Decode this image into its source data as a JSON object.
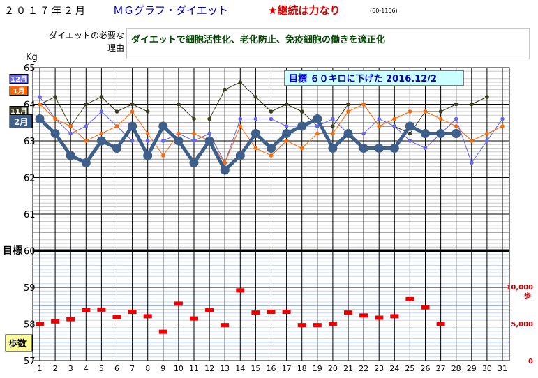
{
  "header": {
    "year_month": "２０１７年２月",
    "link": "ＭＧグラフ・ダイエット",
    "motto": "★継続は力なり",
    "code": "(60-1106)"
  },
  "reason": {
    "label": "ダイエットの必要な理由",
    "text": "ダイエットで細胞活性化、老化防止、免疫細胞の働きを適正化"
  },
  "chart_data": {
    "type": "line",
    "ylabel": "Kg",
    "target_label": "目標",
    "target_value": 60,
    "goal_note": "目標 ６０キロに下げた 2016.12/2",
    "steps_label": "歩数",
    "x": [
      1,
      2,
      3,
      4,
      5,
      6,
      7,
      8,
      9,
      10,
      11,
      12,
      13,
      14,
      15,
      16,
      17,
      18,
      19,
      20,
      21,
      22,
      23,
      24,
      25,
      26,
      27,
      28,
      29,
      30,
      31
    ],
    "ylim": [
      57,
      65
    ],
    "y_ticks": [
      57,
      58,
      59,
      60,
      61,
      62,
      63,
      64,
      65
    ],
    "steps_ticks": [
      {
        "value": 0,
        "label": "0"
      },
      {
        "value": 5000,
        "label": "5,000"
      },
      {
        "value": 10000,
        "label": "10,000"
      }
    ],
    "steps_unit": "歩",
    "series": [
      {
        "name": "11月",
        "color": "#3a3a1c",
        "values": [
          64.0,
          64.2,
          63.4,
          64.0,
          64.2,
          63.8,
          64.0,
          63.8,
          null,
          64.0,
          63.6,
          63.6,
          64.4,
          64.6,
          64.2,
          63.8,
          64.0,
          63.8,
          63.4,
          63.4,
          64.0,
          64.0,
          63.4,
          63.4,
          63.2,
          63.8,
          63.8,
          64.0,
          64.0,
          64.2,
          null
        ]
      },
      {
        "name": "12月",
        "color": "#6666ee",
        "values": [
          64.2,
          63.6,
          63.2,
          63.4,
          63.8,
          63.4,
          63.0,
          63.0,
          63.0,
          63.2,
          63.0,
          63.2,
          62.4,
          63.6,
          63.6,
          63.6,
          63.4,
          63.4,
          63.4,
          63.6,
          63.2,
          63.2,
          63.6,
          63.4,
          63.0,
          62.8,
          63.2,
          63.6,
          62.4,
          63.0,
          63.6
        ]
      },
      {
        "name": "1月",
        "color": "#ff6600",
        "values": [
          64.0,
          63.6,
          63.4,
          63.0,
          63.2,
          63.4,
          63.8,
          63.2,
          62.6,
          63.2,
          63.2,
          63.0,
          62.4,
          63.4,
          62.8,
          62.6,
          63.0,
          62.8,
          63.2,
          63.2,
          63.8,
          64.0,
          63.4,
          63.6,
          63.8,
          63.8,
          63.6,
          63.4,
          63.0,
          63.2,
          63.4
        ]
      },
      {
        "name": "2月",
        "color": "#3d5f8a",
        "values": [
          63.6,
          63.2,
          62.6,
          62.4,
          63.0,
          62.8,
          63.4,
          62.6,
          63.4,
          63.0,
          62.4,
          63.0,
          62.2,
          62.6,
          63.2,
          62.8,
          63.2,
          63.4,
          63.6,
          62.8,
          63.2,
          62.8,
          62.8,
          62.8,
          63.4,
          63.2,
          63.2,
          63.2,
          null,
          null,
          null
        ]
      }
    ],
    "steps": [
      5000,
      5300,
      5600,
      6800,
      6900,
      5900,
      6600,
      6000,
      3900,
      7700,
      5700,
      6800,
      4800,
      9500,
      6500,
      6600,
      6600,
      4800,
      4800,
      5000,
      6500,
      6100,
      5800,
      6000,
      8300,
      7200,
      5000,
      null,
      null,
      null,
      null
    ],
    "grid": true
  }
}
